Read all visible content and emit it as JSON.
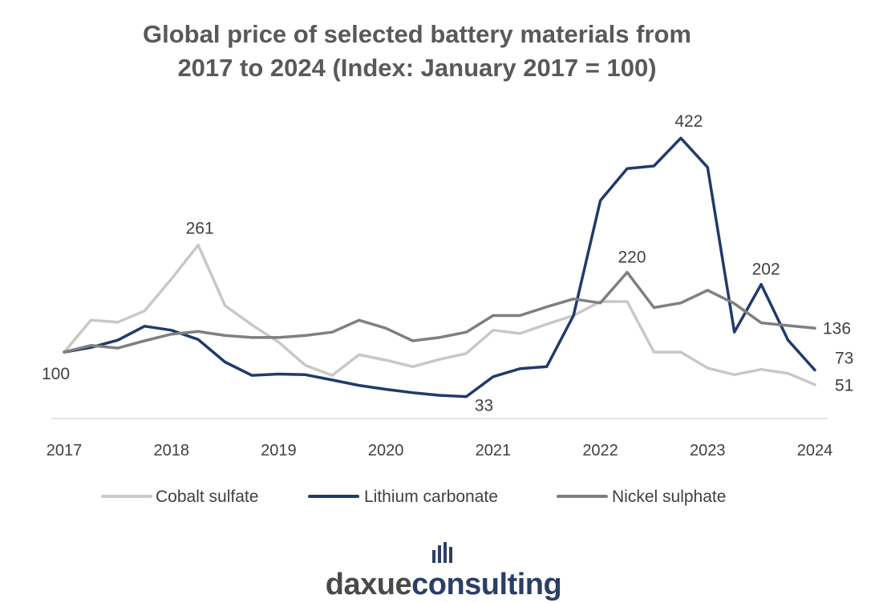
{
  "chart_data": {
    "type": "line",
    "title_lines": [
      "Global price of selected battery materials from",
      "2017 to 2024 (Index: January 2017 = 100)"
    ],
    "xlabel": "",
    "ylabel": "",
    "x_ticks": [
      "2017",
      "2018",
      "2019",
      "2020",
      "2021",
      "2022",
      "2023",
      "2024"
    ],
    "x_range": [
      2017,
      2024
    ],
    "ylim": [
      0,
      450
    ],
    "grid": false,
    "legend_position": "bottom",
    "series": [
      {
        "name": "Cobalt sulfate",
        "color": "#c8c8c8",
        "x": [
          2017.0,
          2017.25,
          2017.5,
          2017.75,
          2018.0,
          2018.25,
          2018.5,
          2018.75,
          2019.0,
          2019.25,
          2019.5,
          2019.75,
          2020.0,
          2020.25,
          2020.5,
          2020.75,
          2021.0,
          2021.25,
          2021.5,
          2021.75,
          2022.0,
          2022.25,
          2022.5,
          2022.75,
          2023.0,
          2023.25,
          2023.5,
          2023.75,
          2024.0
        ],
        "values": [
          100,
          148,
          145,
          162,
          210,
          261,
          170,
          141,
          115,
          80,
          65,
          96,
          88,
          78,
          89,
          98,
          133,
          128,
          142,
          155,
          176,
          176,
          100,
          100,
          76,
          66,
          74,
          68,
          51
        ]
      },
      {
        "name": "Lithium carbonate",
        "color": "#213a6b",
        "x": [
          2017.0,
          2017.25,
          2017.5,
          2017.75,
          2018.0,
          2018.25,
          2018.5,
          2018.75,
          2019.0,
          2019.25,
          2019.5,
          2019.75,
          2020.0,
          2020.25,
          2020.5,
          2020.75,
          2021.0,
          2021.25,
          2021.5,
          2021.75,
          2022.0,
          2022.25,
          2022.5,
          2022.75,
          2023.0,
          2023.25,
          2023.5,
          2023.75,
          2024.0
        ],
        "values": [
          100,
          107,
          118,
          139,
          133,
          119,
          85,
          65,
          67,
          66,
          58,
          50,
          44,
          39,
          35,
          33,
          63,
          75,
          78,
          155,
          328,
          376,
          380,
          422,
          378,
          130,
          202,
          118,
          73
        ]
      },
      {
        "name": "Nickel sulphate",
        "color": "#7f7f7f",
        "x": [
          2017.0,
          2017.25,
          2017.5,
          2017.75,
          2018.0,
          2018.25,
          2018.5,
          2018.75,
          2019.0,
          2019.25,
          2019.5,
          2019.75,
          2020.0,
          2020.25,
          2020.5,
          2020.75,
          2021.0,
          2021.25,
          2021.5,
          2021.75,
          2022.0,
          2022.25,
          2022.5,
          2022.75,
          2023.0,
          2023.25,
          2023.5,
          2023.75,
          2024.0
        ],
        "values": [
          100,
          110,
          106,
          117,
          127,
          131,
          125,
          122,
          122,
          125,
          130,
          148,
          136,
          117,
          122,
          130,
          155,
          155,
          168,
          180,
          174,
          220,
          167,
          174,
          193,
          173,
          144,
          140,
          136
        ]
      }
    ],
    "annotations": [
      {
        "series": 0,
        "index": 0,
        "label": "100",
        "anchor": "start",
        "dx": -28,
        "dy": 34
      },
      {
        "series": 0,
        "index": 5,
        "label": "261",
        "anchor": "middle",
        "dx": 2,
        "dy": -14
      },
      {
        "series": 1,
        "index": 15,
        "label": "33",
        "anchor": "middle",
        "dx": 22,
        "dy": 18
      },
      {
        "series": 1,
        "index": 23,
        "label": "422",
        "anchor": "middle",
        "dx": 10,
        "dy": -14
      },
      {
        "series": 2,
        "index": 21,
        "label": "220",
        "anchor": "middle",
        "dx": 6,
        "dy": -12
      },
      {
        "series": 1,
        "index": 26,
        "label": "202",
        "anchor": "middle",
        "dx": 6,
        "dy": -12
      },
      {
        "series": 2,
        "index": 28,
        "label": "136",
        "anchor": "start",
        "dx": 10,
        "dy": 7
      },
      {
        "series": 1,
        "index": 28,
        "label": "73",
        "anchor": "start",
        "dx": 25,
        "dy": -8
      },
      {
        "series": 0,
        "index": 28,
        "label": "51",
        "anchor": "start",
        "dx": 25,
        "dy": 8
      }
    ]
  },
  "brand": {
    "part1": "daxue",
    "part2": "consulting"
  }
}
